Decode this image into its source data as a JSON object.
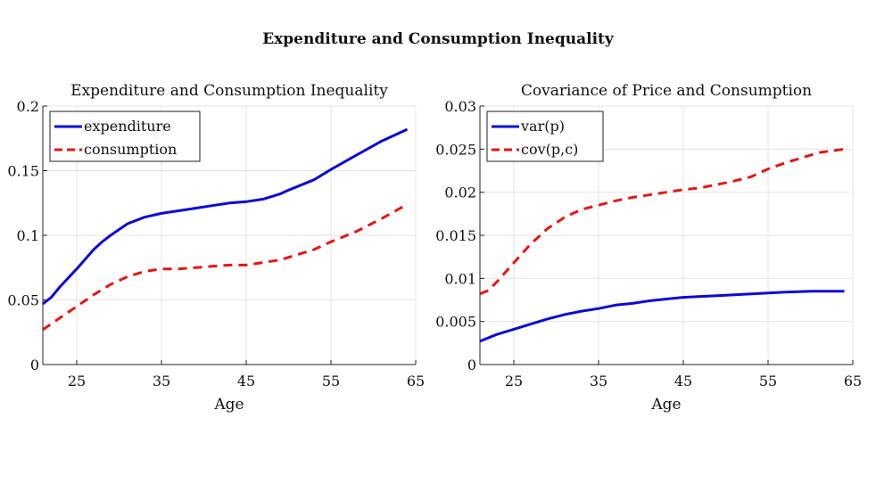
{
  "figure_title": "Expenditure and Consumption Inequality",
  "colors": {
    "blue": "#0a0ad6",
    "red": "#e61515",
    "grid": "#e3e3e3",
    "axis": "#222222"
  },
  "chart_data": [
    {
      "type": "line",
      "title": "Expenditure and Consumption Inequality",
      "xlabel": "Age",
      "ylabel": "",
      "xlim": [
        21,
        65
      ],
      "ylim": [
        0,
        0.2
      ],
      "xticks": [
        25,
        35,
        45,
        55,
        65
      ],
      "yticks": [
        0,
        0.05,
        0.1,
        0.15,
        0.2
      ],
      "ytick_labels": [
        "0",
        "0.05",
        "0.1",
        "0.15",
        "0.2"
      ],
      "grid": true,
      "legend_position": "top-left",
      "series": [
        {
          "name": "expenditure",
          "style": "solid",
          "color": "#0a0ad6",
          "x": [
            21,
            22,
            23,
            25,
            27,
            28,
            29,
            31,
            33,
            35,
            37,
            39,
            41,
            43,
            45,
            47,
            49,
            50,
            53,
            55,
            58,
            61,
            64
          ],
          "y": [
            0.047,
            0.052,
            0.06,
            0.074,
            0.089,
            0.095,
            0.1,
            0.109,
            0.114,
            0.117,
            0.119,
            0.121,
            0.123,
            0.125,
            0.126,
            0.128,
            0.132,
            0.135,
            0.143,
            0.151,
            0.162,
            0.173,
            0.182
          ]
        },
        {
          "name": "consumption",
          "style": "dashed",
          "color": "#e61515",
          "x": [
            21,
            23,
            25,
            27,
            29,
            31,
            33,
            35,
            37,
            39,
            41,
            43,
            45,
            47,
            49,
            51,
            53,
            55,
            58,
            61,
            64
          ],
          "y": [
            0.027,
            0.036,
            0.045,
            0.054,
            0.062,
            0.068,
            0.072,
            0.074,
            0.074,
            0.075,
            0.076,
            0.077,
            0.077,
            0.079,
            0.081,
            0.085,
            0.089,
            0.095,
            0.103,
            0.113,
            0.124
          ]
        }
      ]
    },
    {
      "type": "line",
      "title": "Covariance of Price and Consumption",
      "xlabel": "Age",
      "ylabel": "",
      "xlim": [
        21,
        65
      ],
      "ylim": [
        0,
        0.03
      ],
      "xticks": [
        25,
        35,
        45,
        55,
        65
      ],
      "yticks": [
        0,
        0.005,
        0.01,
        0.015,
        0.02,
        0.025,
        0.03
      ],
      "ytick_labels": [
        "0",
        "0.005",
        "0.01",
        "0.015",
        "0.02",
        "0.025",
        "0.03"
      ],
      "grid": true,
      "legend_position": "top-left",
      "series": [
        {
          "name": "var(p)",
          "style": "solid",
          "color": "#0a0ad6",
          "x": [
            21,
            23,
            25,
            27,
            29,
            31,
            33,
            35,
            37,
            39,
            41,
            43,
            45,
            47,
            49,
            51,
            53,
            55,
            57,
            60,
            64
          ],
          "y": [
            0.0027,
            0.0035,
            0.0041,
            0.0047,
            0.0053,
            0.0058,
            0.0062,
            0.0065,
            0.0069,
            0.0071,
            0.0074,
            0.0076,
            0.0078,
            0.0079,
            0.008,
            0.0081,
            0.0082,
            0.0083,
            0.0084,
            0.0085,
            0.0085
          ]
        },
        {
          "name": "cov(p,c)",
          "style": "dashed",
          "color": "#e61515",
          "x": [
            21,
            22,
            23,
            25,
            27,
            29,
            31,
            33,
            35,
            37,
            39,
            41,
            43,
            45,
            47,
            49,
            51,
            53,
            55,
            57,
            59,
            61,
            64
          ],
          "y": [
            0.0082,
            0.0086,
            0.0096,
            0.0118,
            0.014,
            0.0158,
            0.0171,
            0.018,
            0.0185,
            0.019,
            0.0194,
            0.0197,
            0.02,
            0.0203,
            0.0205,
            0.0209,
            0.0213,
            0.0218,
            0.0227,
            0.0234,
            0.024,
            0.0246,
            0.025
          ]
        }
      ]
    }
  ]
}
